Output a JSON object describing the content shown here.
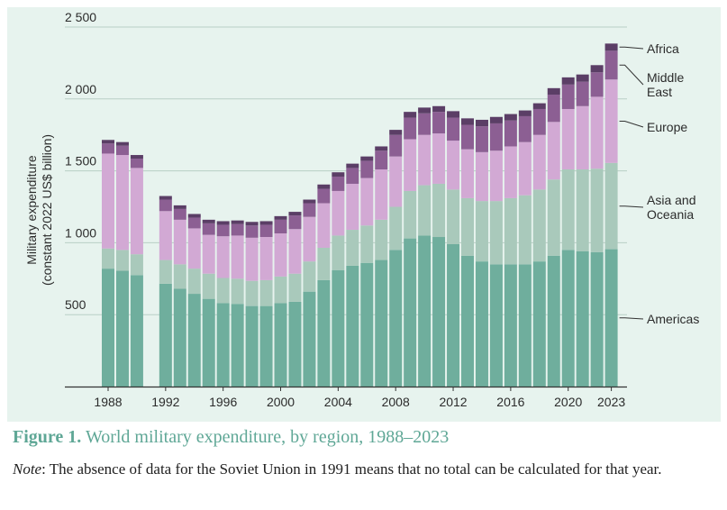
{
  "caption": {
    "figure_number": "Figure 1.",
    "title": "World military expenditure, by region, 1988–2023"
  },
  "note": {
    "label": "Note",
    "text": ": The absence of data for the Soviet Union in 1991 means that no total can be calculated for that year."
  },
  "colors": {
    "panel_background": "#e7f3ee",
    "Americas": "#6fae9d",
    "Asia and Oceania": "#a9c9bb",
    "Europe": "#d2a9d4",
    "Middle East": "#8c5f93",
    "Africa": "#5b3e66"
  },
  "chart_data": {
    "type": "bar",
    "stacked": true,
    "ylabel": [
      "Military expenditure",
      "(constant 2022 US$ billion)"
    ],
    "ylim": [
      0,
      2500
    ],
    "ytick_values": [
      500,
      1000,
      1500,
      2000,
      2500
    ],
    "ytick_labels": [
      "500",
      "1 000",
      "1 500",
      "2 000",
      "2 500"
    ],
    "xtick_labels": [
      "1988",
      "1992",
      "1996",
      "2000",
      "2004",
      "2008",
      "2012",
      "2016",
      "2020",
      "2023"
    ],
    "grid": "horizontal",
    "legend_placement": "right",
    "categories": [
      1988,
      1989,
      1990,
      1991,
      1992,
      1993,
      1994,
      1995,
      1996,
      1997,
      1998,
      1999,
      2000,
      2001,
      2002,
      2003,
      2004,
      2005,
      2006,
      2007,
      2008,
      2009,
      2010,
      2011,
      2012,
      2013,
      2014,
      2015,
      2016,
      2017,
      2018,
      2019,
      2020,
      2021,
      2022,
      2023
    ],
    "series": [
      {
        "name": "Americas",
        "values": [
          820,
          805,
          775,
          null,
          715,
          680,
          645,
          610,
          580,
          575,
          560,
          560,
          580,
          590,
          660,
          740,
          810,
          840,
          860,
          880,
          950,
          1030,
          1050,
          1040,
          990,
          910,
          870,
          850,
          850,
          850,
          870,
          910,
          950,
          940,
          935,
          955
        ]
      },
      {
        "name": "Asia and Oceania",
        "values": [
          140,
          145,
          145,
          null,
          165,
          170,
          175,
          175,
          175,
          175,
          175,
          180,
          185,
          195,
          210,
          225,
          240,
          250,
          260,
          280,
          300,
          330,
          350,
          370,
          380,
          400,
          420,
          440,
          460,
          480,
          500,
          530,
          560,
          570,
          580,
          600
        ]
      },
      {
        "name": "Europe",
        "values": [
          660,
          660,
          600,
          null,
          340,
          310,
          280,
          270,
          290,
          300,
          300,
          300,
          300,
          310,
          310,
          310,
          310,
          320,
          330,
          350,
          350,
          360,
          350,
          350,
          340,
          340,
          340,
          350,
          360,
          370,
          380,
          400,
          420,
          440,
          500,
          580
        ]
      },
      {
        "name": "Middle East",
        "values": [
          70,
          65,
          65,
          null,
          80,
          75,
          75,
          80,
          80,
          80,
          85,
          85,
          95,
          95,
          95,
          100,
          100,
          110,
          120,
          130,
          150,
          150,
          150,
          150,
          160,
          170,
          180,
          190,
          180,
          180,
          180,
          190,
          170,
          170,
          170,
          200
        ]
      },
      {
        "name": "Africa",
        "values": [
          25,
          25,
          25,
          null,
          25,
          25,
          25,
          25,
          25,
          25,
          25,
          25,
          25,
          25,
          25,
          30,
          30,
          30,
          30,
          30,
          35,
          40,
          40,
          40,
          45,
          45,
          45,
          45,
          45,
          40,
          40,
          45,
          50,
          50,
          50,
          50
        ]
      }
    ],
    "legend": [
      {
        "series": "Africa",
        "lines": [
          "Africa"
        ]
      },
      {
        "series": "Middle East",
        "lines": [
          "Middle",
          "East"
        ]
      },
      {
        "series": "Europe",
        "lines": [
          "Europe"
        ]
      },
      {
        "series": "Asia and Oceania",
        "lines": [
          "Asia and",
          "Oceania"
        ]
      },
      {
        "series": "Americas",
        "lines": [
          "Americas"
        ]
      }
    ]
  }
}
